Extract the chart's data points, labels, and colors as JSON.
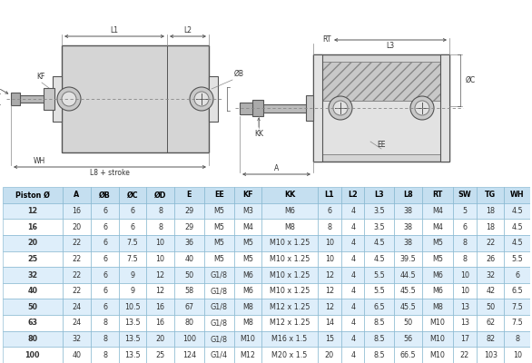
{
  "headers": [
    "Piston Ø",
    "A",
    "ØB",
    "ØC",
    "ØD",
    "E",
    "EE",
    "KF",
    "KK",
    "L1",
    "L2",
    "L3",
    "L8",
    "RT",
    "SW",
    "TG",
    "WH"
  ],
  "rows": [
    [
      "12",
      "16",
      "6",
      "6",
      "8",
      "29",
      "M5",
      "M3",
      "M6",
      "6",
      "4",
      "3.5",
      "38",
      "M4",
      "5",
      "18",
      "4.5"
    ],
    [
      "16",
      "20",
      "6",
      "6",
      "8",
      "29",
      "M5",
      "M4",
      "M8",
      "8",
      "4",
      "3.5",
      "38",
      "M4",
      "6",
      "18",
      "4.5"
    ],
    [
      "20",
      "22",
      "6",
      "7.5",
      "10",
      "36",
      "M5",
      "M5",
      "M10 x 1.25",
      "10",
      "4",
      "4.5",
      "38",
      "M5",
      "8",
      "22",
      "4.5"
    ],
    [
      "25",
      "22",
      "6",
      "7.5",
      "10",
      "40",
      "M5",
      "M5",
      "M10 x 1.25",
      "10",
      "4",
      "4.5",
      "39.5",
      "M5",
      "8",
      "26",
      "5.5"
    ],
    [
      "32",
      "22",
      "6",
      "9",
      "12",
      "50",
      "G1/8",
      "M6",
      "M10 x 1.25",
      "12",
      "4",
      "5.5",
      "44.5",
      "M6",
      "10",
      "32",
      "6"
    ],
    [
      "40",
      "22",
      "6",
      "9",
      "12",
      "58",
      "G1/8",
      "M6",
      "M10 x 1.25",
      "12",
      "4",
      "5.5",
      "45.5",
      "M6",
      "10",
      "42",
      "6.5"
    ],
    [
      "50",
      "24",
      "6",
      "10.5",
      "16",
      "67",
      "G1/8",
      "M8",
      "M12 x 1.25",
      "12",
      "4",
      "6.5",
      "45.5",
      "M8",
      "13",
      "50",
      "7.5"
    ],
    [
      "63",
      "24",
      "8",
      "13.5",
      "16",
      "80",
      "G1/8",
      "M8",
      "M12 x 1.25",
      "14",
      "4",
      "8.5",
      "50",
      "M10",
      "13",
      "62",
      "7.5"
    ],
    [
      "80",
      "32",
      "8",
      "13.5",
      "20",
      "100",
      "G1/8",
      "M10",
      "M16 x 1.5",
      "15",
      "4",
      "8.5",
      "56",
      "M10",
      "17",
      "82",
      "8"
    ],
    [
      "100",
      "40",
      "8",
      "13.5",
      "25",
      "124",
      "G1/4",
      "M12",
      "M20 x 1.5",
      "20",
      "4",
      "8.5",
      "66.5",
      "M10",
      "22",
      "103",
      "10"
    ]
  ],
  "header_bg": "#c5dff0",
  "row_bg_alt": "#deeefa",
  "row_bg_normal": "#ffffff",
  "header_text_color": "#000000",
  "cell_text_color": "#444444",
  "border_color": "#7ab0cc"
}
